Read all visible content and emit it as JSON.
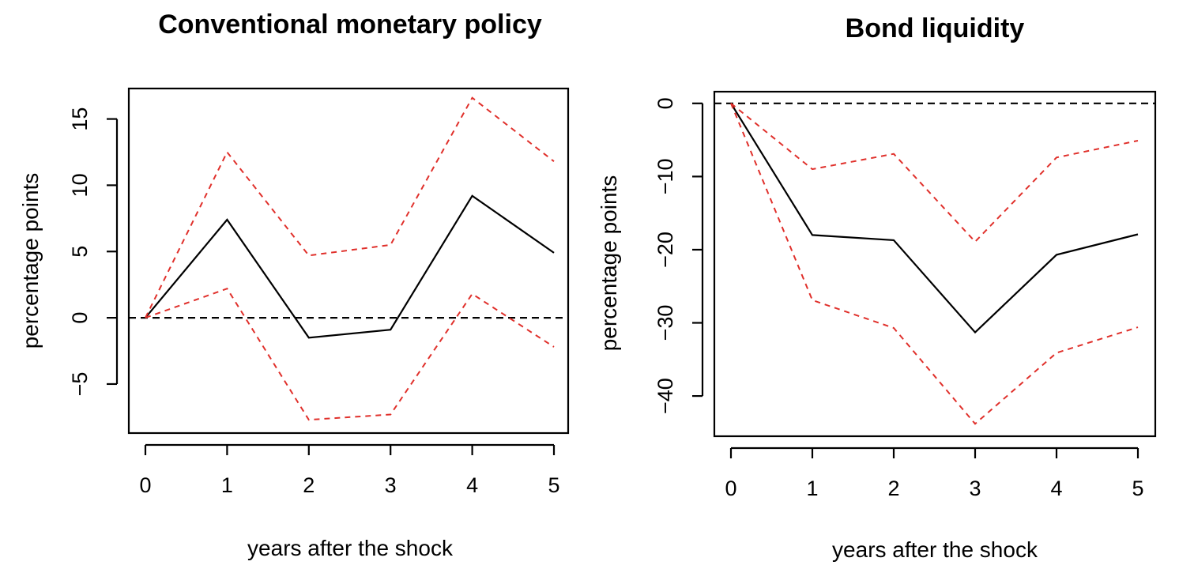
{
  "chart_data": [
    {
      "type": "line",
      "title": "Conventional monetary policy",
      "xlabel": "years after the shock",
      "ylabel": "percentage points",
      "x": [
        0,
        1,
        2,
        3,
        4,
        5
      ],
      "xticks": [
        "0",
        "1",
        "2",
        "3",
        "4",
        "5"
      ],
      "yticks": [
        -5,
        0,
        5,
        10,
        15
      ],
      "ytick_labels": [
        "−5",
        "0",
        "5",
        "10",
        "15"
      ],
      "ylim": [
        -8.7,
        17.3
      ],
      "reference_line": 0,
      "series": [
        {
          "role": "estimate",
          "color": "#000000",
          "style": "solid",
          "values": [
            0,
            7.4,
            -1.5,
            -0.9,
            9.2,
            4.9
          ]
        },
        {
          "role": "upper band",
          "color": "#e0302b",
          "style": "dashed",
          "values": [
            0,
            12.5,
            4.7,
            5.5,
            16.6,
            11.8
          ]
        },
        {
          "role": "lower band",
          "color": "#e0302b",
          "style": "dashed",
          "values": [
            0,
            2.2,
            -7.7,
            -7.3,
            1.8,
            -2.2
          ]
        }
      ]
    },
    {
      "type": "line",
      "title": "Bond liquidity",
      "xlabel": "years after the shock",
      "ylabel": "percentage points",
      "x": [
        0,
        1,
        2,
        3,
        4,
        5
      ],
      "xticks": [
        "0",
        "1",
        "2",
        "3",
        "4",
        "5"
      ],
      "yticks": [
        -40,
        -30,
        -20,
        -10,
        0
      ],
      "ytick_labels": [
        "−40",
        "−30",
        "−20",
        "−10",
        "0"
      ],
      "ylim": [
        -45.5,
        1.6
      ],
      "reference_line": 0,
      "series": [
        {
          "role": "estimate",
          "color": "#000000",
          "style": "solid",
          "values": [
            0,
            -18,
            -18.7,
            -31.3,
            -20.7,
            -17.9
          ]
        },
        {
          "role": "upper band",
          "color": "#e0302b",
          "style": "dashed",
          "values": [
            0,
            -9,
            -6.9,
            -18.9,
            -7.4,
            -5.1
          ]
        },
        {
          "role": "lower band",
          "color": "#e0302b",
          "style": "dashed",
          "values": [
            0,
            -26.9,
            -30.7,
            -43.8,
            -34.1,
            -30.6
          ]
        }
      ]
    }
  ]
}
